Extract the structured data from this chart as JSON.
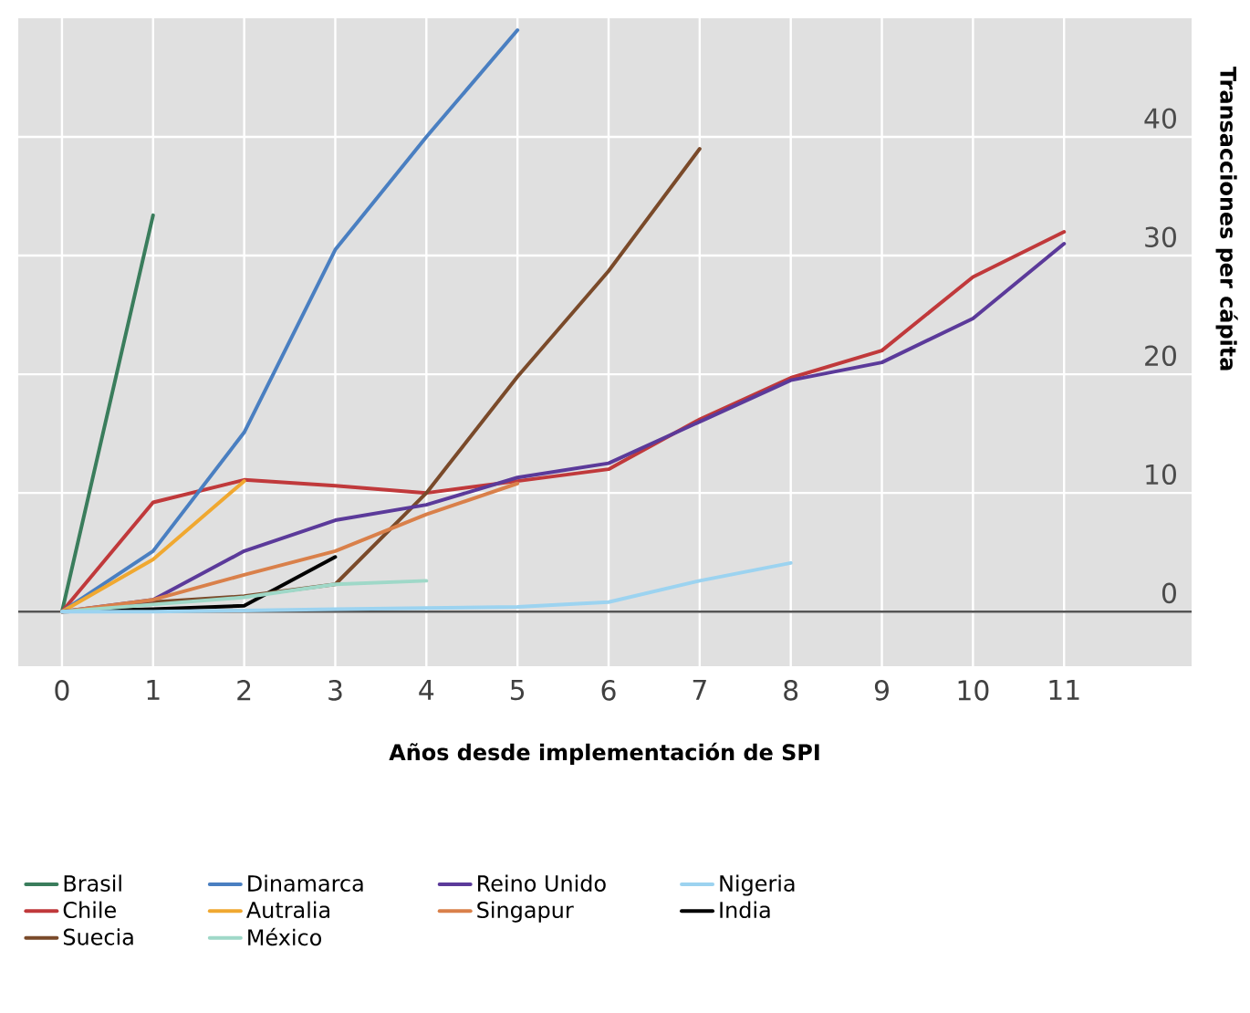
{
  "chart_data": {
    "type": "line",
    "xlabel": "Años desde implementación de SPI",
    "ylabel": "Transacciones per cápita",
    "xlim": [
      -0.48,
      12.4
    ],
    "ylim": [
      -4.6,
      50
    ],
    "xticks": [
      0,
      1,
      2,
      3,
      4,
      5,
      6,
      7,
      8,
      9,
      10,
      11
    ],
    "yticks": [
      0,
      10,
      20,
      30,
      40
    ],
    "grid": true,
    "legend": "bottom",
    "marker": "none",
    "line_style": "solid",
    "ref_lines": [
      {
        "axis": "y",
        "value": 0,
        "color": "#555555"
      }
    ],
    "series": [
      {
        "name": "Brasil",
        "color": "#3a7d5c",
        "x": [
          0,
          1
        ],
        "values": [
          0,
          33.4
        ]
      },
      {
        "name": "Chile",
        "color": "#c0393b",
        "x": [
          0,
          1,
          2,
          3,
          4,
          5,
          6,
          7,
          8,
          9,
          10,
          11
        ],
        "values": [
          0,
          9.2,
          11.1,
          10.6,
          10,
          11,
          12,
          16.2,
          19.7,
          22,
          28.2,
          32
        ]
      },
      {
        "name": "India",
        "color": "#000000",
        "x": [
          0,
          1,
          2,
          3
        ],
        "values": [
          0,
          0.2,
          0.5,
          4.6
        ]
      },
      {
        "name": "Dinamarca",
        "color": "#4a7fc1",
        "x": [
          0,
          1,
          2,
          3,
          4,
          5
        ],
        "values": [
          0,
          5.1,
          15.1,
          30.5,
          40,
          49
        ]
      },
      {
        "name": "Autralia",
        "color": "#f0a830",
        "x": [
          0,
          1,
          2
        ],
        "values": [
          0,
          4.4,
          11
        ]
      },
      {
        "name": "Suecia",
        "color": "#7a4a2a",
        "x": [
          0,
          1,
          2,
          3,
          4,
          5,
          6,
          7
        ],
        "values": [
          0,
          0.8,
          1.3,
          2.3,
          10,
          19.8,
          28.7,
          39
        ]
      },
      {
        "name": "Reino Unido",
        "color": "#5b3a9a",
        "x": [
          0,
          1,
          2,
          3,
          4,
          5,
          6,
          7,
          8,
          9,
          10,
          11
        ],
        "values": [
          0,
          1,
          5.1,
          7.7,
          9,
          11.3,
          12.5,
          16,
          19.5,
          21,
          24.7,
          31
        ]
      },
      {
        "name": "Singapur",
        "color": "#d9804a",
        "x": [
          0,
          1,
          2,
          3,
          4,
          5
        ],
        "values": [
          0,
          1,
          3.1,
          5.1,
          8.2,
          10.8
        ]
      },
      {
        "name": "México",
        "color": "#9fd8c8",
        "x": [
          0,
          1,
          2,
          3,
          4
        ],
        "values": [
          0,
          0.6,
          1.2,
          2.3,
          2.6
        ]
      },
      {
        "name": "Nigeria",
        "color": "#9cd3f0",
        "x": [
          0,
          1,
          2,
          3,
          4,
          5,
          6,
          7,
          8
        ],
        "values": [
          0,
          0,
          0.1,
          0.2,
          0.3,
          0.4,
          0.8,
          2.6,
          4.1
        ]
      }
    ]
  }
}
